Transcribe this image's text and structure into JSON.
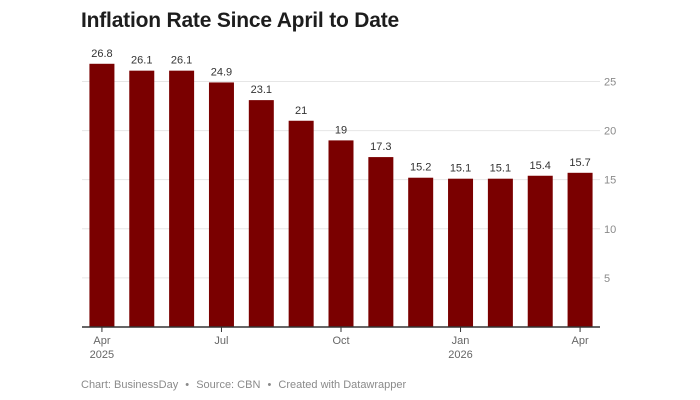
{
  "chart_data": {
    "type": "bar",
    "title": "Inflation Rate Since April to Date",
    "categories": [
      "Apr 2025",
      "May 2025",
      "Jun 2025",
      "Jul 2025",
      "Aug 2025",
      "Sep 2025",
      "Oct 2025",
      "Nov 2025",
      "Dec 2025",
      "Jan 2026",
      "Feb 2026",
      "Mar 2026",
      "Apr 2026"
    ],
    "values": [
      26.8,
      26.1,
      26.1,
      24.9,
      23.1,
      21,
      19,
      17.3,
      15.2,
      15.1,
      15.1,
      15.4,
      15.7
    ],
    "value_labels": [
      "26.8",
      "26.1",
      "26.1",
      "24.9",
      "23.1",
      "21",
      "19",
      "17.3",
      "15.2",
      "15.1",
      "15.1",
      "15.4",
      "15.7"
    ],
    "x_ticks": [
      {
        "index": 0,
        "lines": [
          "Apr",
          "2025"
        ]
      },
      {
        "index": 3,
        "lines": [
          "Jul"
        ]
      },
      {
        "index": 6,
        "lines": [
          "Oct"
        ]
      },
      {
        "index": 9,
        "lines": [
          "Jan",
          "2026"
        ]
      },
      {
        "index": 12,
        "lines": [
          "Apr"
        ]
      }
    ],
    "y_ticks": [
      5,
      10,
      15,
      20,
      25
    ],
    "ylim": [
      0,
      28
    ],
    "y_axis_position": "right",
    "grid": true,
    "bar_color": "#7a0000",
    "xlabel": "",
    "ylabel": ""
  },
  "footer": {
    "credit": "Chart: BusinessDay",
    "source": "Source: CBN",
    "created": "Created with Datawrapper",
    "separator": "•"
  }
}
